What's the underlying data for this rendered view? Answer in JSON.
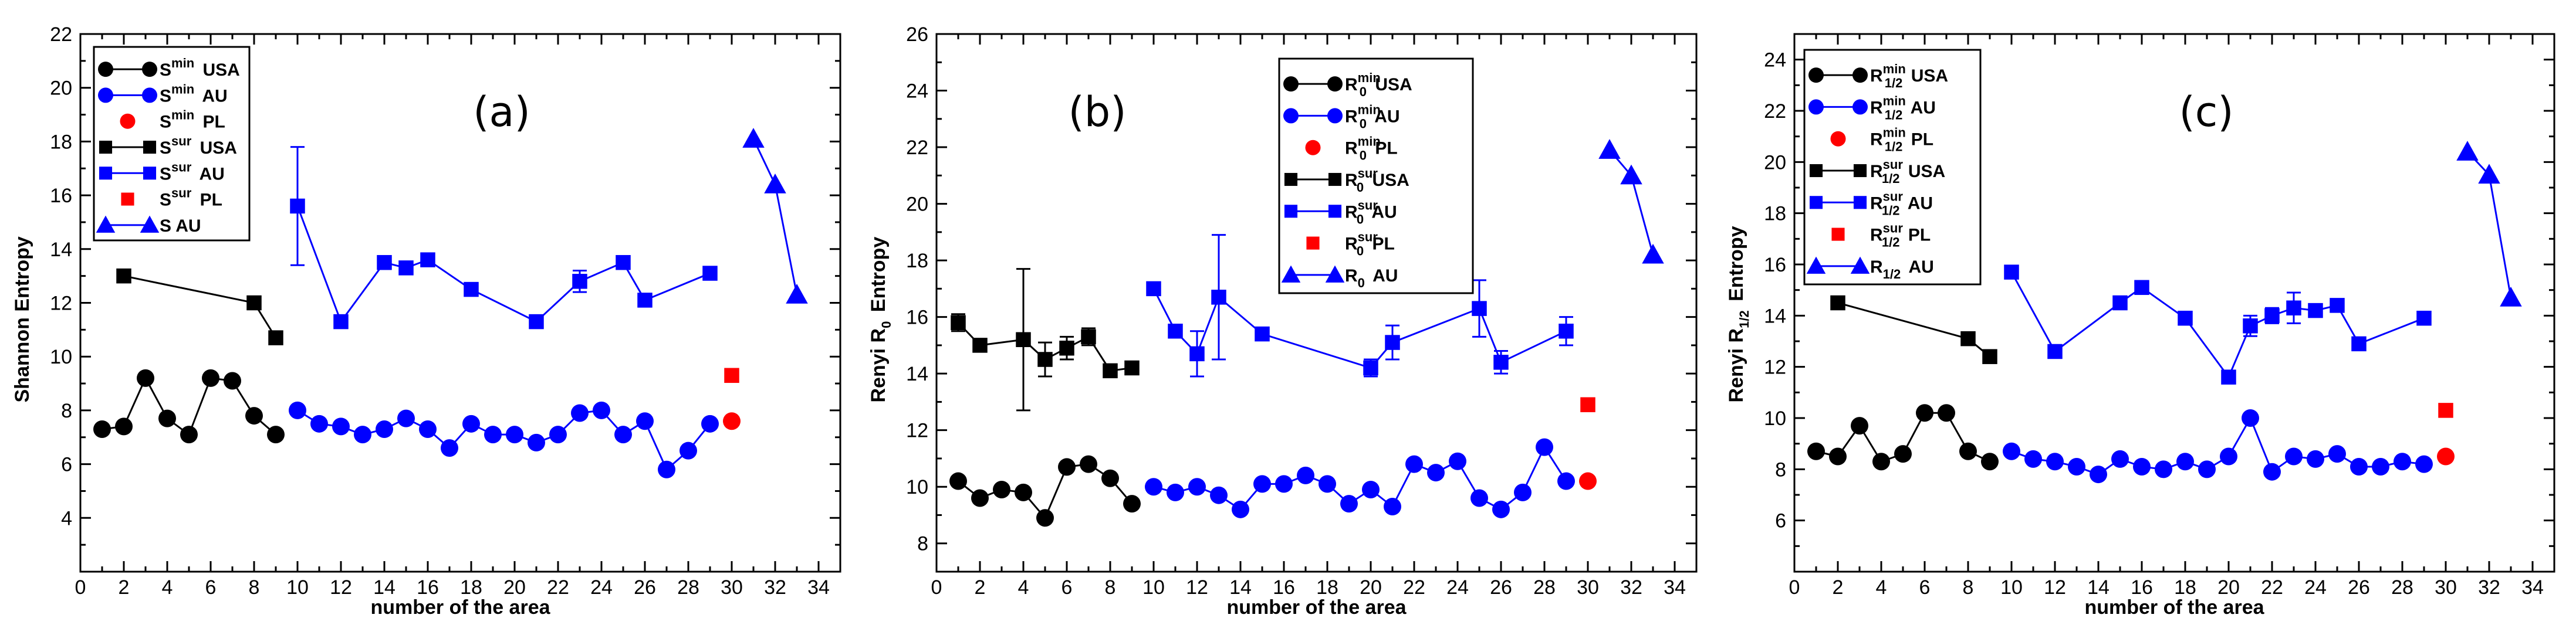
{
  "chart_data": [
    {
      "type": "line",
      "panel": "(a)",
      "xlabel": "number of the area",
      "ylabel": "Shannon Entropy",
      "xlim": [
        0,
        35
      ],
      "ylim": [
        2,
        22
      ],
      "xticks": [
        0,
        2,
        4,
        6,
        8,
        10,
        12,
        14,
        16,
        18,
        20,
        22,
        24,
        26,
        28,
        30,
        32,
        34
      ],
      "yticks": [
        4,
        6,
        8,
        10,
        12,
        14,
        16,
        18,
        20,
        22
      ],
      "legend_position": "top-left",
      "series": [
        {
          "name": "S min USA",
          "base": "S",
          "sup": "min",
          "suffix": "USA",
          "color": "#000000",
          "marker": "circle",
          "line": true,
          "x": [
            1,
            2,
            3,
            4,
            5,
            6,
            7,
            8,
            9
          ],
          "y": [
            7.3,
            7.4,
            9.2,
            7.7,
            7.1,
            9.2,
            9.1,
            7.8,
            7.1
          ]
        },
        {
          "name": "S min AU",
          "base": "S",
          "sup": "min",
          "suffix": "AU",
          "color": "#0000ff",
          "marker": "circle",
          "line": true,
          "x": [
            10,
            11,
            12,
            13,
            14,
            15,
            16,
            17,
            18,
            19,
            20,
            21,
            22,
            23,
            24,
            25,
            26,
            27,
            28,
            29
          ],
          "y": [
            8.0,
            7.5,
            7.4,
            7.1,
            7.3,
            7.7,
            7.3,
            6.6,
            7.5,
            7.1,
            7.1,
            6.8,
            7.1,
            7.9,
            8.0,
            7.1,
            7.6,
            5.8,
            6.5,
            7.5
          ]
        },
        {
          "name": "S min PL",
          "base": "S",
          "sup": "min",
          "suffix": "PL",
          "color": "#ff0000",
          "marker": "circle",
          "line": false,
          "x": [
            30
          ],
          "y": [
            7.6
          ]
        },
        {
          "name": "S sur USA",
          "base": "S",
          "sup": "sur",
          "suffix": "USA",
          "color": "#000000",
          "marker": "square",
          "line": true,
          "x": [
            2,
            8,
            9
          ],
          "y": [
            13.0,
            12.0,
            10.7
          ]
        },
        {
          "name": "S sur AU",
          "base": "S",
          "sup": "sur",
          "suffix": "AU",
          "color": "#0000ff",
          "marker": "square",
          "line": true,
          "x": [
            10,
            12,
            14,
            15,
            16,
            18,
            21,
            23,
            25,
            26,
            29
          ],
          "y": [
            15.6,
            11.3,
            13.5,
            13.3,
            13.6,
            12.5,
            11.3,
            12.8,
            13.5,
            12.1,
            13.1
          ],
          "err": [
            2.2,
            0,
            0,
            0,
            0,
            0,
            0,
            0.4,
            0,
            0,
            0
          ]
        },
        {
          "name": "S sur PL",
          "base": "S",
          "sup": "sur",
          "suffix": "PL",
          "color": "#ff0000",
          "marker": "square",
          "line": false,
          "x": [
            30
          ],
          "y": [
            9.3
          ]
        },
        {
          "name": "S AU",
          "base": "S",
          "sup": "",
          "suffix": "AU",
          "color": "#0000ff",
          "marker": "triangle",
          "line": true,
          "x": [
            31,
            32,
            33
          ],
          "y": [
            18.1,
            16.4,
            12.3
          ]
        }
      ]
    },
    {
      "type": "line",
      "panel": "(b)",
      "xlabel": "number of the area",
      "ylabel": "Renyi R0 Entropy",
      "ylabel_base": "Renyi R",
      "ylabel_sub": "0",
      "ylabel_suffix": " Entropy",
      "xlim": [
        0,
        35
      ],
      "ylim": [
        7,
        26
      ],
      "xticks": [
        0,
        2,
        4,
        6,
        8,
        10,
        12,
        14,
        16,
        18,
        20,
        22,
        24,
        26,
        28,
        30,
        32,
        34
      ],
      "yticks": [
        8,
        10,
        12,
        14,
        16,
        18,
        20,
        22,
        24,
        26
      ],
      "legend_position": "top-center",
      "series": [
        {
          "name": "R0 min USA",
          "base": "R",
          "sub": "0",
          "sup": "min",
          "suffix": "USA",
          "color": "#000000",
          "marker": "circle",
          "line": true,
          "x": [
            1,
            2,
            3,
            4,
            5,
            6,
            7,
            8,
            9
          ],
          "y": [
            10.2,
            9.6,
            9.9,
            9.8,
            8.9,
            10.7,
            10.8,
            10.3,
            9.4
          ]
        },
        {
          "name": "R0 min AU",
          "base": "R",
          "sub": "0",
          "sup": "min",
          "suffix": "AU",
          "color": "#0000ff",
          "marker": "circle",
          "line": true,
          "x": [
            10,
            11,
            12,
            13,
            14,
            15,
            16,
            17,
            18,
            19,
            20,
            21,
            22,
            23,
            24,
            25,
            26,
            27,
            28,
            29
          ],
          "y": [
            10.0,
            9.8,
            10.0,
            9.7,
            9.2,
            10.1,
            10.1,
            10.4,
            10.1,
            9.4,
            9.9,
            9.3,
            10.8,
            10.5,
            10.9,
            9.6,
            9.2,
            9.8,
            11.4,
            10.2
          ]
        },
        {
          "name": "R0 min PL",
          "base": "R",
          "sub": "0",
          "sup": "min",
          "suffix": "PL",
          "color": "#ff0000",
          "marker": "circle",
          "line": false,
          "x": [
            30
          ],
          "y": [
            10.2
          ]
        },
        {
          "name": "R0 sur USA",
          "base": "R",
          "sub": "0",
          "sup": "sur",
          "suffix": "USA",
          "color": "#000000",
          "marker": "square",
          "line": true,
          "x": [
            1,
            2,
            4,
            5,
            6,
            7,
            8,
            9
          ],
          "y": [
            15.8,
            15.0,
            15.2,
            14.5,
            14.9,
            15.3,
            14.1,
            14.2
          ],
          "err": [
            0.3,
            0,
            2.5,
            0.6,
            0.4,
            0.3,
            0,
            0
          ]
        },
        {
          "name": "R0 sur AU",
          "base": "R",
          "sub": "0",
          "sup": "sur",
          "suffix": "AU",
          "color": "#0000ff",
          "marker": "square",
          "line": true,
          "x": [
            10,
            11,
            12,
            13,
            15,
            20,
            21,
            25,
            26,
            29
          ],
          "y": [
            17.0,
            15.5,
            14.7,
            16.7,
            15.4,
            14.2,
            15.1,
            16.3,
            14.4,
            15.5
          ],
          "err": [
            0,
            0,
            0.8,
            2.2,
            0,
            0.3,
            0.6,
            1.0,
            0.4,
            0.5
          ]
        },
        {
          "name": "R0 sur PL",
          "base": "R",
          "sub": "0",
          "sup": "sur",
          "suffix": "PL",
          "color": "#ff0000",
          "marker": "square",
          "line": false,
          "x": [
            30
          ],
          "y": [
            12.9
          ]
        },
        {
          "name": "R0 AU",
          "base": "R",
          "sub": "0",
          "sup": "",
          "suffix": "AU",
          "color": "#0000ff",
          "marker": "triangle",
          "line": true,
          "x": [
            31,
            32,
            33
          ],
          "y": [
            21.9,
            21.0,
            18.2
          ]
        }
      ]
    },
    {
      "type": "line",
      "panel": "(c)",
      "xlabel": "number of the area",
      "ylabel": "Renyi R1/2 Entropy",
      "ylabel_base": "Renyi R",
      "ylabel_sub": "1/2",
      "ylabel_suffix": " Entropy",
      "xlim": [
        0,
        35
      ],
      "ylim": [
        4,
        25
      ],
      "xticks": [
        0,
        2,
        4,
        6,
        8,
        10,
        12,
        14,
        16,
        18,
        20,
        22,
        24,
        26,
        28,
        30,
        32,
        34
      ],
      "yticks": [
        6,
        8,
        10,
        12,
        14,
        16,
        18,
        20,
        22,
        24
      ],
      "legend_position": "top-left",
      "series": [
        {
          "name": "R1/2 min USA",
          "base": "R",
          "sub": "1/2",
          "sup": "min",
          "suffix": "USA",
          "color": "#000000",
          "marker": "circle",
          "line": true,
          "x": [
            1,
            2,
            3,
            4,
            5,
            6,
            7,
            8,
            9
          ],
          "y": [
            8.7,
            8.5,
            9.7,
            8.3,
            8.6,
            10.2,
            10.2,
            8.7,
            8.3
          ]
        },
        {
          "name": "R1/2 min AU",
          "base": "R",
          "sub": "1/2",
          "sup": "min",
          "suffix": "AU",
          "color": "#0000ff",
          "marker": "circle",
          "line": true,
          "x": [
            10,
            11,
            12,
            13,
            14,
            15,
            16,
            17,
            18,
            19,
            20,
            21,
            22,
            23,
            24,
            25,
            26,
            27,
            28,
            29
          ],
          "y": [
            8.7,
            8.4,
            8.3,
            8.1,
            7.8,
            8.4,
            8.1,
            8.0,
            8.3,
            8.0,
            8.5,
            10.0,
            7.9,
            8.5,
            8.4,
            8.6,
            8.1,
            8.1,
            8.3,
            8.2
          ]
        },
        {
          "name": "R1/2 min PL",
          "base": "R",
          "sub": "1/2",
          "sup": "min",
          "suffix": "PL",
          "color": "#ff0000",
          "marker": "circle",
          "line": false,
          "x": [
            30
          ],
          "y": [
            8.5
          ]
        },
        {
          "name": "R1/2 sur USA",
          "base": "R",
          "sub": "1/2",
          "sup": "sur",
          "suffix": "USA",
          "color": "#000000",
          "marker": "square",
          "line": true,
          "x": [
            2,
            8,
            9
          ],
          "y": [
            14.5,
            13.1,
            12.4
          ]
        },
        {
          "name": "R1/2 sur AU",
          "base": "R",
          "sub": "1/2",
          "sup": "sur",
          "suffix": "AU",
          "color": "#0000ff",
          "marker": "square",
          "line": true,
          "x": [
            10,
            12,
            15,
            16,
            18,
            20,
            21,
            22,
            23,
            24,
            25,
            26,
            29
          ],
          "y": [
            15.7,
            12.6,
            14.5,
            15.1,
            13.9,
            11.6,
            13.6,
            14.0,
            14.3,
            14.2,
            14.4,
            12.9,
            13.9
          ],
          "err": [
            0,
            0,
            0,
            0,
            0,
            0,
            0.4,
            0.3,
            0.6,
            0,
            0,
            0,
            0
          ]
        },
        {
          "name": "R1/2 sur PL",
          "base": "R",
          "sub": "1/2",
          "sup": "sur",
          "suffix": "PL",
          "color": "#ff0000",
          "marker": "square",
          "line": false,
          "x": [
            30
          ],
          "y": [
            10.3
          ]
        },
        {
          "name": "R1/2 AU",
          "base": "R",
          "sub": "1/2",
          "sup": "",
          "suffix": "AU",
          "color": "#0000ff",
          "marker": "triangle",
          "line": true,
          "x": [
            31,
            32,
            33
          ],
          "y": [
            20.4,
            19.5,
            14.7
          ]
        }
      ]
    }
  ]
}
